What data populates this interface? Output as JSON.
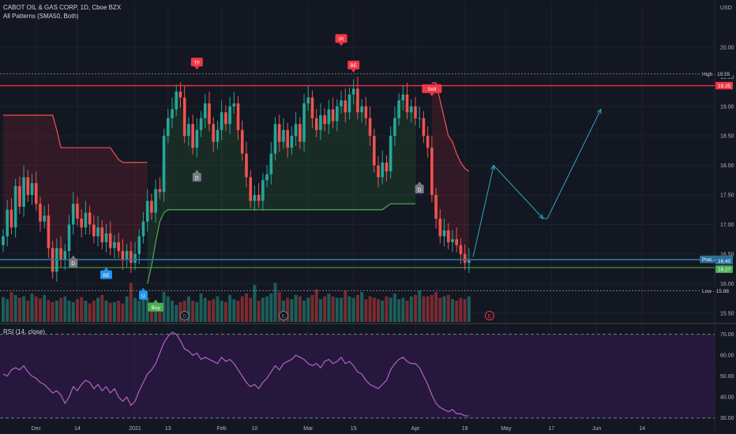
{
  "header": {
    "symbol": "CABOT OIL & GAS CORP, 1D, Cboe BZX",
    "indicator": "All Patterns (SMA50, Both)",
    "rsi_label": "RSI (14, close)",
    "currency": "USD"
  },
  "chart_data": {
    "type": "candlestick",
    "price_axis": {
      "min": 15.35,
      "max": 20.4,
      "ticks": [
        15.5,
        16.0,
        16.5,
        17.0,
        17.5,
        18.0,
        18.5,
        19.0,
        19.5,
        20.0
      ]
    },
    "rsi_axis": {
      "min": 28,
      "max": 74,
      "ticks": [
        30.0,
        40.0,
        50.0,
        60.0,
        70.0
      ],
      "bands": [
        70.0,
        30.0
      ]
    },
    "x_tick_labels": [
      {
        "label": "Dec",
        "index": 8
      },
      {
        "label": "14",
        "index": 18
      },
      {
        "label": "2021",
        "index": 32
      },
      {
        "label": "13",
        "index": 40
      },
      {
        "label": "Feb",
        "index": 53
      },
      {
        "label": "10",
        "index": 61
      },
      {
        "label": "Mar",
        "index": 74
      },
      {
        "label": "15",
        "index": 85
      },
      {
        "label": "Apr",
        "index": 100
      },
      {
        "label": "19",
        "index": 112
      },
      {
        "label": "May",
        "index": 122
      },
      {
        "label": "17",
        "index": 133
      },
      {
        "label": "Jun",
        "index": 144
      },
      {
        "label": "14",
        "index": 155
      }
    ],
    "closes": [
      16.8,
      17.25,
      16.95,
      17.65,
      17.3,
      17.8,
      17.5,
      17.7,
      17.35,
      17.05,
      17.15,
      16.6,
      16.2,
      16.6,
      16.4,
      16.55,
      17.0,
      17.35,
      17.1,
      16.95,
      17.2,
      17.0,
      16.8,
      16.95,
      16.7,
      16.85,
      16.6,
      16.7,
      16.55,
      16.4,
      16.55,
      16.35,
      16.5,
      16.8,
      17.05,
      17.4,
      17.2,
      17.6,
      17.55,
      18.5,
      18.8,
      18.95,
      19.25,
      19.15,
      18.5,
      18.7,
      18.3,
      18.6,
      18.8,
      19.05,
      18.7,
      18.4,
      18.6,
      18.9,
      18.7,
      19.0,
      19.05,
      18.6,
      18.2,
      17.8,
      17.4,
      17.5,
      17.4,
      17.75,
      17.85,
      18.2,
      18.7,
      18.4,
      18.6,
      18.3,
      18.5,
      18.7,
      18.4,
      19.05,
      19.15,
      18.8,
      18.6,
      18.85,
      18.7,
      18.95,
      18.75,
      19.0,
      19.1,
      18.9,
      19.2,
      19.3,
      18.9,
      19.0,
      18.8,
      18.5,
      18.0,
      17.8,
      18.05,
      17.9,
      18.5,
      18.8,
      19.1,
      19.2,
      18.9,
      19.0,
      18.8,
      18.8,
      18.5,
      18.3,
      17.5,
      17.1,
      16.8,
      16.9,
      16.7,
      16.75,
      16.65,
      16.5,
      16.35,
      16.4
    ],
    "volumes": [
      0.35,
      0.32,
      0.42,
      0.38,
      0.34,
      0.36,
      0.3,
      0.4,
      0.36,
      0.33,
      0.38,
      0.31,
      0.28,
      0.3,
      0.34,
      0.36,
      0.3,
      0.28,
      0.32,
      0.35,
      0.3,
      0.26,
      0.3,
      0.34,
      0.38,
      0.3,
      0.27,
      0.28,
      0.3,
      0.26,
      0.36,
      0.55,
      0.34,
      0.3,
      0.32,
      0.34,
      0.28,
      0.3,
      0.26,
      0.42,
      0.36,
      0.3,
      0.24,
      0.28,
      0.3,
      0.36,
      0.3,
      0.28,
      0.4,
      0.34,
      0.3,
      0.32,
      0.36,
      0.3,
      0.28,
      0.38,
      0.32,
      0.3,
      0.36,
      0.4,
      0.34,
      0.52,
      0.3,
      0.34,
      0.36,
      0.4,
      0.55,
      0.42,
      0.3,
      0.34,
      0.32,
      0.38,
      0.36,
      0.3,
      0.34,
      0.38,
      0.46,
      0.32,
      0.36,
      0.4,
      0.36,
      0.34,
      0.34,
      0.44,
      0.36,
      0.34,
      0.38,
      0.42,
      0.32,
      0.36,
      0.34,
      0.32,
      0.3,
      0.36,
      0.34,
      0.4,
      0.32,
      0.34,
      0.3,
      0.36,
      0.38,
      0.44,
      0.36,
      0.36,
      0.38,
      0.42,
      0.34,
      0.36,
      0.38,
      0.32,
      0.3,
      0.34,
      0.32,
      0.36
    ],
    "rsi": [
      51,
      50,
      53,
      54,
      53,
      55,
      52,
      50,
      49,
      47,
      46,
      44,
      42,
      43,
      41,
      37,
      40,
      45,
      43,
      46,
      48,
      47,
      44,
      46,
      43,
      45,
      42,
      44,
      40,
      38,
      40,
      36,
      38,
      43,
      47,
      51,
      53,
      56,
      61,
      66,
      69,
      71,
      70,
      67,
      63,
      62,
      60,
      61,
      58,
      59,
      58,
      57,
      56,
      59,
      57,
      58,
      56,
      53,
      50,
      47,
      45,
      46,
      44,
      47,
      49,
      52,
      55,
      53,
      56,
      57,
      58,
      60,
      59,
      58,
      56,
      55,
      56,
      54,
      57,
      58,
      56,
      57,
      59,
      56,
      57,
      55,
      52,
      51,
      48,
      46,
      45,
      44,
      46,
      48,
      53,
      56,
      58,
      59,
      57,
      56,
      56,
      54,
      50,
      46,
      41,
      37,
      35,
      34,
      33,
      34,
      32,
      32,
      31,
      31
    ],
    "sma50_trail": [
      18.85,
      18.85,
      18.85,
      18.85,
      18.85,
      18.85,
      18.85,
      18.85,
      18.85,
      18.85,
      18.85,
      18.85,
      18.85,
      18.6,
      18.3,
      18.3,
      18.3,
      18.3,
      18.3,
      18.3,
      18.3,
      18.3,
      18.3,
      18.3,
      18.3,
      18.3,
      18.3,
      18.2,
      18.1,
      18.05,
      18.05,
      18.05,
      18.05,
      18.05,
      18.05,
      18.05,
      null,
      null,
      null,
      null,
      null,
      null,
      null,
      null,
      null,
      null,
      null,
      null,
      null,
      null,
      null,
      null,
      null,
      null,
      null,
      null,
      null,
      null,
      null,
      null,
      null,
      null,
      null,
      null,
      null,
      null,
      null,
      null,
      null,
      null,
      null,
      null,
      null,
      null,
      null,
      null,
      null,
      null,
      null,
      null,
      null,
      null,
      null,
      null,
      null,
      null,
      null,
      null,
      null,
      null,
      null,
      null,
      null,
      null,
      null,
      null,
      null,
      null,
      null,
      null,
      null,
      null,
      null,
      null,
      19.4,
      19.4,
      19.1,
      18.8,
      18.5,
      18.4,
      18.2,
      18.05,
      17.95,
      17.9
    ],
    "sma50_support": [
      null,
      null,
      null,
      null,
      null,
      null,
      null,
      null,
      null,
      null,
      null,
      null,
      null,
      null,
      null,
      null,
      null,
      null,
      null,
      null,
      null,
      null,
      null,
      null,
      null,
      null,
      null,
      null,
      null,
      null,
      null,
      null,
      null,
      null,
      null,
      16.0,
      16.3,
      16.7,
      17.05,
      17.2,
      17.25,
      17.25,
      17.25,
      17.25,
      17.25,
      17.25,
      17.25,
      17.25,
      17.25,
      17.25,
      17.25,
      17.25,
      17.25,
      17.25,
      17.25,
      17.25,
      17.25,
      17.25,
      17.25,
      17.25,
      17.25,
      17.25,
      17.25,
      17.25,
      17.25,
      17.25,
      17.25,
      17.25,
      17.25,
      17.25,
      17.25,
      17.25,
      17.25,
      17.25,
      17.25,
      17.25,
      17.25,
      17.25,
      17.25,
      17.25,
      17.25,
      17.25,
      17.25,
      17.25,
      17.25,
      17.25,
      17.25,
      17.25,
      17.25,
      17.25,
      17.25,
      17.25,
      17.25,
      17.3,
      17.35,
      17.35,
      17.35,
      17.35,
      17.35,
      17.35,
      17.35,
      null,
      null,
      null,
      null,
      null,
      null,
      null,
      null,
      null,
      null,
      null
    ],
    "hlines": [
      {
        "id": "resistance",
        "value": 19.35,
        "color": "#f23645",
        "label": "19.35"
      },
      {
        "id": "high",
        "value": 19.55,
        "color": "#787b86",
        "label": "High - 19.55"
      },
      {
        "id": "prev-close",
        "value": 16.41,
        "color": "#2a6f9a",
        "label": "PreL - 16.41"
      },
      {
        "id": "last",
        "value": 16.4,
        "color": "#2a6f9a",
        "label": "16.40"
      },
      {
        "id": "support",
        "value": 16.27,
        "color": "#4caf50",
        "label": "16.27"
      },
      {
        "id": "low",
        "value": 15.88,
        "color": "#787b86",
        "label": "Low - 15.88"
      }
    ],
    "projection": [
      {
        "index": 114,
        "value": 16.45
      },
      {
        "index": 119,
        "value": 18.0
      },
      {
        "index": 131,
        "value": 17.1
      },
      {
        "index": 132,
        "value": 17.1
      },
      {
        "index": 145,
        "value": 18.95
      }
    ],
    "pattern_markers": [
      {
        "label": "TF",
        "index": 47,
        "value": 19.75,
        "color": "#f23645",
        "dir": "down"
      },
      {
        "label": "IR",
        "index": 82,
        "value": 20.15,
        "color": "#f23645",
        "dir": "down"
      },
      {
        "label": "BE",
        "index": 85,
        "value": 19.7,
        "color": "#f23645",
        "dir": "down"
      },
      {
        "label": "Sell",
        "index": 104,
        "value": 19.3,
        "color": "#f23645",
        "dir": "down"
      },
      {
        "label": "D",
        "index": 47,
        "value": 17.8,
        "color": "#787b86",
        "dir": "up"
      },
      {
        "label": "D",
        "index": 17,
        "value": 16.35,
        "color": "#787b86",
        "dir": "up"
      },
      {
        "label": "D",
        "index": 101,
        "value": 17.6,
        "color": "#787b86",
        "dir": "up"
      },
      {
        "label": "BE",
        "index": 25,
        "value": 16.15,
        "color": "#2196f3",
        "dir": "up"
      },
      {
        "label": "U",
        "index": 34,
        "value": 15.8,
        "color": "#2196f3",
        "dir": "up"
      },
      {
        "label": "Buy",
        "index": 37,
        "value": 15.6,
        "color": "#4caf50",
        "dir": "up"
      }
    ],
    "event_markers": [
      {
        "label": "D",
        "index": 44,
        "color": "#787b86"
      },
      {
        "label": "E",
        "index": 68,
        "color": "#787b86"
      },
      {
        "label": "E",
        "index": 118,
        "color": "#f23645"
      }
    ],
    "colors": {
      "up": "#26a69a",
      "down": "#ef5350",
      "resistance": "#f23645",
      "support": "#4caf50",
      "rsi": "#b063c5",
      "rsi_fill": "#2e1a46",
      "projection": "#2aa9be"
    }
  }
}
